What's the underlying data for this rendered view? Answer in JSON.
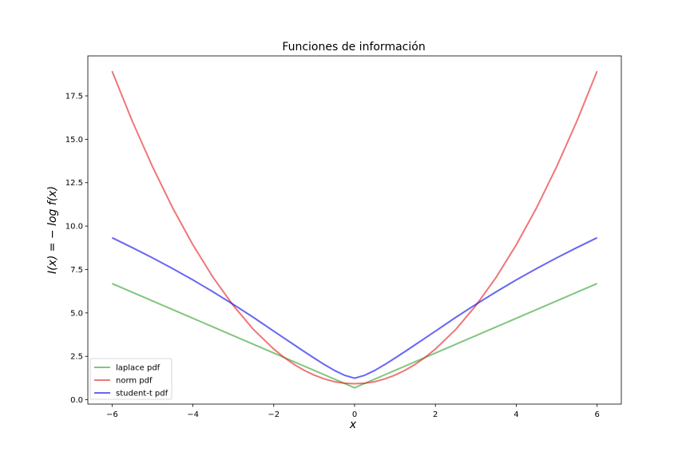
{
  "chart_data": {
    "type": "line",
    "title": "Funciones de información",
    "xlabel": "x",
    "ylabel": "I(x) = − log f(x)",
    "xlim": [
      -6.6,
      6.6
    ],
    "ylim": [
      -0.25,
      19.8
    ],
    "xticks": [
      -6,
      -4,
      -2,
      0,
      2,
      4,
      6
    ],
    "xtick_labels": [
      "−6",
      "−4",
      "−2",
      "0",
      "2",
      "4",
      "6"
    ],
    "yticks": [
      0,
      2.5,
      5,
      7.5,
      10,
      12.5,
      15,
      17.5
    ],
    "ytick_labels": [
      "0.0",
      "2.5",
      "5.0",
      "7.5",
      "10.0",
      "12.5",
      "15.0",
      "17.5"
    ],
    "grid": false,
    "legend_position": "lower-left",
    "x": [
      -6,
      -5.5,
      -5,
      -4.5,
      -4,
      -3.5,
      -3,
      -2.5,
      -2,
      -1.75,
      -1.5,
      -1.25,
      -1,
      -0.75,
      -0.5,
      -0.25,
      0,
      0.25,
      0.5,
      0.75,
      1,
      1.25,
      1.5,
      1.75,
      2,
      2.5,
      3,
      3.5,
      4,
      4.5,
      5,
      5.5,
      6
    ],
    "series": [
      {
        "name": "laplace pdf",
        "color": "#2ca02c",
        "opacity": 0.6,
        "values": [
          6.69,
          6.19,
          5.69,
          5.19,
          4.69,
          4.19,
          3.69,
          3.19,
          2.69,
          2.44,
          2.19,
          1.94,
          1.69,
          1.44,
          1.19,
          0.94,
          0.69,
          0.94,
          1.19,
          1.44,
          1.69,
          1.94,
          2.19,
          2.44,
          2.69,
          3.19,
          3.69,
          4.19,
          4.69,
          5.19,
          5.69,
          6.19,
          6.69
        ]
      },
      {
        "name": "norm pdf",
        "color": "#e41a1c",
        "opacity": 0.6,
        "values": [
          18.92,
          16.04,
          13.42,
          11.04,
          8.92,
          7.04,
          5.42,
          4.04,
          2.92,
          2.45,
          2.04,
          1.7,
          1.42,
          1.2,
          1.04,
          0.95,
          0.92,
          0.95,
          1.04,
          1.2,
          1.42,
          1.7,
          2.04,
          2.45,
          2.92,
          4.04,
          5.42,
          7.04,
          8.92,
          11.04,
          13.42,
          16.04,
          18.92
        ]
      },
      {
        "name": "student-t pdf",
        "color": "#0000ee",
        "opacity": 0.6,
        "values": [
          9.33,
          8.76,
          8.17,
          7.55,
          6.9,
          6.21,
          5.49,
          4.74,
          3.95,
          3.56,
          3.17,
          2.78,
          2.4,
          2.03,
          1.69,
          1.41,
          1.24,
          1.41,
          1.69,
          2.03,
          2.4,
          2.78,
          3.17,
          3.56,
          3.95,
          4.74,
          5.49,
          6.21,
          6.9,
          7.55,
          8.17,
          8.76,
          9.33
        ]
      }
    ]
  }
}
